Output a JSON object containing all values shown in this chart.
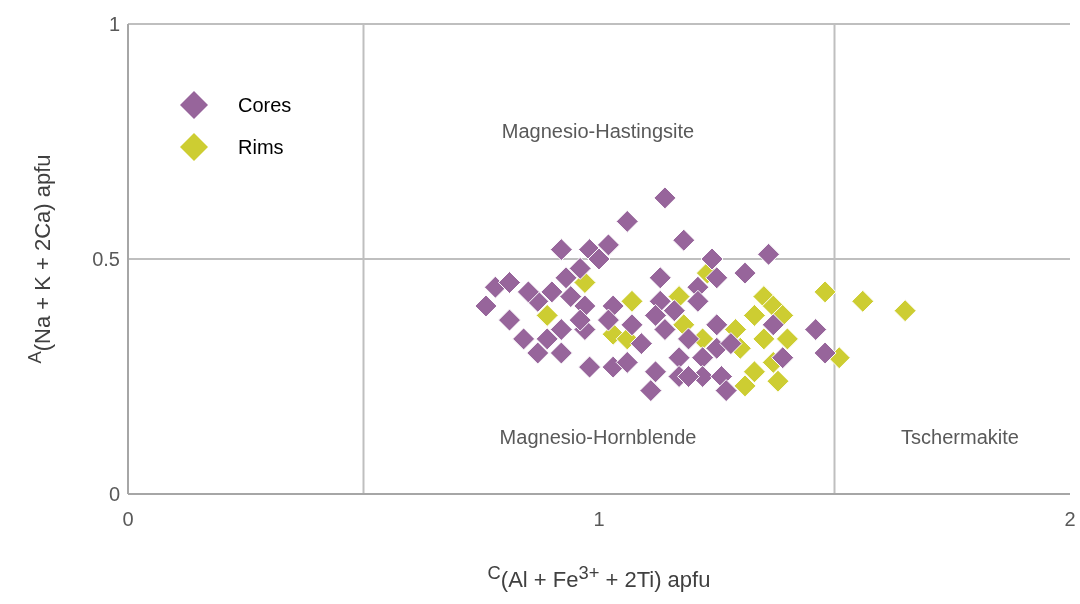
{
  "chart_data": {
    "type": "scatter",
    "xlabel": "$^{C}$(Al + Fe$^{3+}$ + 2Ti) apfu",
    "ylabel": "$^{A}$(Na + K + 2Ca) apfu",
    "xlim": [
      0,
      2
    ],
    "xticks": [
      0,
      1,
      2
    ],
    "ylim": [
      0,
      1
    ],
    "yticks": [
      0,
      0.5,
      1
    ],
    "grid": "y",
    "legend": "top left",
    "marker": "diamond",
    "ref_lines": [
      {
        "axis": "x",
        "value": 0.5,
        "color": "#bfbfbf"
      },
      {
        "axis": "x",
        "value": 1.5,
        "color": "#bfbfbf"
      }
    ],
    "annotations": [
      "Magnesio-Hastingsite",
      "Magnesio-Hornblende",
      "Tschermakite"
    ],
    "series": [
      {
        "name": "Cores",
        "color": "#97659b",
        "x": [
          1.14,
          1.06,
          1.18,
          0.92,
          0.98,
          1.02,
          1.0,
          0.96,
          0.93,
          1.13,
          0.9,
          0.94,
          0.78,
          0.81,
          0.76,
          0.87,
          0.97,
          1.03,
          0.92,
          0.97,
          0.96,
          1.02,
          0.89,
          0.92,
          0.98,
          1.03,
          1.06,
          1.12,
          1.11,
          1.07,
          1.09,
          1.13,
          1.12,
          1.14,
          1.16,
          1.17,
          1.17,
          1.24,
          1.36,
          1.31,
          1.25,
          1.21,
          1.21,
          1.25,
          1.19,
          1.25,
          1.28,
          1.22,
          1.22,
          1.26,
          1.27,
          1.37,
          1.39,
          1.46,
          1.48,
          1.19,
          0.85,
          0.81,
          0.84,
          0.87
        ],
        "values": [
          0.63,
          0.58,
          0.54,
          0.52,
          0.52,
          0.53,
          0.5,
          0.48,
          0.46,
          0.46,
          0.43,
          0.42,
          0.44,
          0.45,
          0.4,
          0.41,
          0.4,
          0.4,
          0.35,
          0.35,
          0.37,
          0.37,
          0.33,
          0.3,
          0.27,
          0.27,
          0.28,
          0.26,
          0.22,
          0.36,
          0.32,
          0.41,
          0.38,
          0.35,
          0.39,
          0.29,
          0.25,
          0.5,
          0.51,
          0.47,
          0.46,
          0.44,
          0.41,
          0.36,
          0.33,
          0.31,
          0.32,
          0.29,
          0.25,
          0.25,
          0.22,
          0.36,
          0.29,
          0.35,
          0.3,
          0.25,
          0.43,
          0.37,
          0.33,
          0.3
        ]
      },
      {
        "name": "Rims",
        "color": "#cdcd32",
        "x": [
          1.23,
          1.35,
          1.37,
          1.39,
          1.33,
          1.29,
          1.35,
          1.4,
          1.3,
          1.33,
          1.38,
          1.31,
          1.37,
          1.48,
          1.56,
          1.65,
          1.51,
          1.18,
          1.22,
          0.97,
          0.89,
          1.03,
          1.07,
          1.06,
          1.17
        ],
        "values": [
          0.47,
          0.42,
          0.4,
          0.38,
          0.38,
          0.35,
          0.33,
          0.33,
          0.31,
          0.26,
          0.24,
          0.23,
          0.28,
          0.43,
          0.41,
          0.39,
          0.29,
          0.36,
          0.33,
          0.45,
          0.38,
          0.34,
          0.41,
          0.33,
          0.42
        ]
      }
    ]
  }
}
